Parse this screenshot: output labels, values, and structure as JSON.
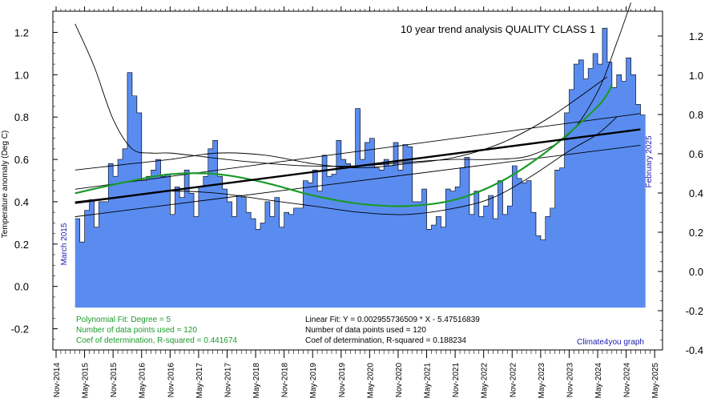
{
  "chart_data": {
    "type": "bar",
    "title": "10 year trend analysis QUALITY CLASS 1",
    "ylabel": "Temperature anomaly (Deg C)",
    "ylim": [
      -0.3,
      1.3
    ],
    "y_ticks_left": [
      "1.2",
      "1.0",
      "0.8",
      "0.6",
      "0.4",
      "0.2",
      "0.0",
      "-0.2"
    ],
    "y_ticks_right": [
      "1.2",
      "1.0",
      "0.8",
      "0.6",
      "0.4",
      "0.2",
      "0.0",
      "-0.2",
      "-0.4"
    ],
    "x_ticks": [
      "Nov-2014",
      "May-2015",
      "Nov-2015",
      "May-2016",
      "Nov-2016",
      "May-2017",
      "Nov-2017",
      "May-2018",
      "Nov-2018",
      "May-2019",
      "Nov-2019",
      "May-2020",
      "Nov-2020",
      "May-2021",
      "Nov-2021",
      "May-2022",
      "Nov-2022",
      "May-2023",
      "Nov-2023",
      "May-2024",
      "Nov-2024",
      "May-2025"
    ],
    "start_label": "March 2015",
    "end_label": "February 2025",
    "x_start": "2015-03",
    "x_end": "2025-02",
    "colors": {
      "bars": "#5a8cf0",
      "poly": "#1a9a2a",
      "start_end_labels": "#1a1ab0",
      "credit": "#1a1ab0"
    },
    "series": [
      {
        "name": "Monthly temperature anomaly",
        "type": "step",
        "values": [
          0.32,
          0.21,
          0.36,
          0.41,
          0.28,
          0.4,
          0.4,
          0.58,
          0.52,
          0.6,
          0.65,
          1.01,
          0.9,
          0.82,
          0.5,
          0.52,
          0.55,
          0.6,
          0.52,
          0.53,
          0.34,
          0.47,
          0.42,
          0.55,
          0.44,
          0.33,
          0.47,
          0.52,
          0.65,
          0.69,
          0.52,
          0.46,
          0.4,
          0.33,
          0.43,
          0.42,
          0.35,
          0.32,
          0.27,
          0.3,
          0.4,
          0.33,
          0.42,
          0.28,
          0.35,
          0.34,
          0.37,
          0.37,
          0.5,
          0.49,
          0.55,
          0.45,
          0.62,
          0.52,
          0.53,
          0.69,
          0.6,
          0.58,
          0.56,
          0.84,
          0.6,
          0.68,
          0.7,
          0.56,
          0.55,
          0.6,
          0.57,
          0.68,
          0.55,
          0.67,
          0.66,
          0.4,
          0.4,
          0.46,
          0.27,
          0.29,
          0.33,
          0.28,
          0.46,
          0.45,
          0.47,
          0.56,
          0.61,
          0.34,
          0.45,
          0.33,
          0.38,
          0.43,
          0.32,
          0.5,
          0.34,
          0.38,
          0.57,
          0.51,
          0.49,
          0.5,
          0.35,
          0.24,
          0.22,
          0.33,
          0.37,
          0.55,
          0.56,
          0.82,
          0.93,
          1.05,
          1.07,
          0.98,
          1.03,
          1.1,
          1.05,
          1.22,
          1.06,
          0.94,
          1.0,
          0.97,
          1.08,
          1.0,
          0.86,
          0.81
        ]
      },
      {
        "name": "Linear fit",
        "type": "line",
        "x": [
          0,
          119
        ],
        "values": [
          0.3943,
          0.7417
        ]
      },
      {
        "name": "Linear fit upper",
        "type": "line",
        "x": [
          0,
          119
        ],
        "values": [
          0.4593,
          0.8167
        ]
      },
      {
        "name": "Linear fit lower",
        "type": "line",
        "x": [
          0,
          119
        ],
        "values": [
          0.3293,
          0.6667
        ]
      },
      {
        "name": "Polynomial fit",
        "type": "line",
        "x": [
          0,
          10,
          20,
          30,
          40,
          50,
          60,
          70,
          80,
          90,
          100,
          110,
          113
        ],
        "values": [
          0.44,
          0.49,
          0.53,
          0.53,
          0.49,
          0.43,
          0.39,
          0.38,
          0.41,
          0.5,
          0.65,
          0.85,
          0.95
        ]
      },
      {
        "name": "Polynomial bound 1",
        "type": "line",
        "x": [
          0,
          4,
          8,
          12,
          16,
          20,
          28,
          36,
          48,
          60,
          72,
          80,
          88,
          96,
          104,
          110,
          114,
          117
        ],
        "values": [
          1.24,
          1.04,
          0.79,
          0.65,
          0.63,
          0.63,
          0.61,
          0.59,
          0.57,
          0.57,
          0.59,
          0.6,
          0.6,
          0.62,
          0.72,
          0.92,
          1.15,
          1.34
        ]
      },
      {
        "name": "Polynomial bound 2",
        "type": "line",
        "x": [
          0,
          12,
          20,
          30,
          40,
          50,
          60,
          70,
          80,
          88,
          96,
          104,
          110,
          114
        ],
        "values": [
          0.4,
          0.43,
          0.45,
          0.44,
          0.41,
          0.38,
          0.35,
          0.34,
          0.37,
          0.42,
          0.52,
          0.64,
          0.72,
          0.8
        ]
      },
      {
        "name": "Polynomial bound 3",
        "type": "line",
        "x": [
          0,
          12,
          20,
          30,
          40,
          50,
          60,
          70,
          80,
          90,
          100,
          112
        ],
        "values": [
          0.55,
          0.58,
          0.6,
          0.63,
          0.62,
          0.58,
          0.56,
          0.58,
          0.61,
          0.68,
          0.8,
          0.99
        ]
      }
    ],
    "annotations": {
      "poly_fit": "Polynomial Fit:  Degree = 5",
      "poly_n": "Number of data points used = 120",
      "poly_r2": "Coef of determination, R-squared = 0.441674",
      "lin_fit": "Linear Fit:  Y = 0.002955736509 * X - 5.47516839",
      "lin_n": "Number of data points used = 120",
      "lin_r2": "Coef of determination, R-squared = 0.188234",
      "credit": "Climate4you graph"
    }
  }
}
